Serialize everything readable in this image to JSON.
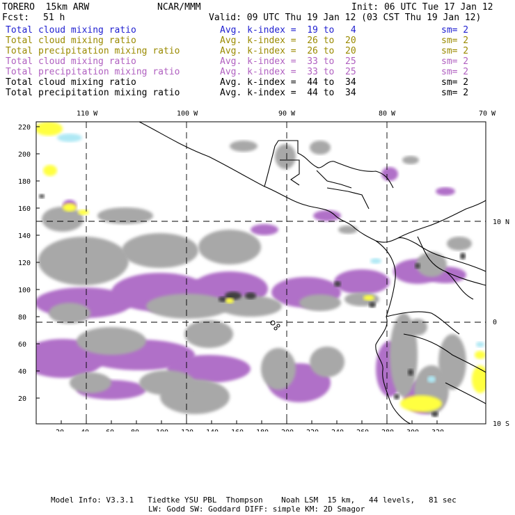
{
  "header": {
    "model": "TORERO  15km ARW",
    "org": "NCAR/MMM",
    "init": "Init: 06 UTC Tue 17 Jan 12",
    "fcst_label": "Fcst:",
    "fcst_value": "51 h",
    "valid": "Valid: 09 UTC Thu 19 Jan 12 (03 CST Thu 19 Jan 12)"
  },
  "legend_rows": [
    {
      "field": "Total cloud mixing ratio",
      "kindex": "Avg. k-index =  19 to   4",
      "sm": "sm= 2",
      "color": "#1f1fd0"
    },
    {
      "field": "Total cloud mixing ratio",
      "kindex": "Avg. k-index =  26 to  20",
      "sm": "sm= 2",
      "color": "#9a8a00"
    },
    {
      "field": "Total precipitation mixing ratio",
      "kindex": "Avg. k-index =  26 to  20",
      "sm": "sm= 2",
      "color": "#9a8a00"
    },
    {
      "field": "Total cloud mixing ratio",
      "kindex": "Avg. k-index =  33 to  25",
      "sm": "sm= 2",
      "color": "#b060c0"
    },
    {
      "field": "Total precipitation mixing ratio",
      "kindex": "Avg. k-index =  33 to  25",
      "sm": "sm= 2",
      "color": "#b060c0"
    },
    {
      "field": "Total cloud mixing ratio",
      "kindex": "Avg. k-index =  44 to  34",
      "sm": "sm= 2",
      "color": "#000000"
    },
    {
      "field": "Total precipitation mixing ratio",
      "kindex": "Avg. k-index =  44 to  34",
      "sm": "sm= 2",
      "color": "#000000"
    }
  ],
  "axes": {
    "top_lon": [
      "110 W",
      "100 W",
      "90 W",
      "80 W",
      "70 W"
    ],
    "right_lat": [
      "10 N",
      "0",
      "10 S"
    ],
    "y_ticks": [
      "220",
      "200",
      "180",
      "160",
      "140",
      "120",
      "100",
      "80",
      "60",
      "40",
      "20"
    ],
    "x_ticks": [
      "20",
      "40",
      "60",
      "80",
      "100",
      "120",
      "140",
      "160",
      "180",
      "200",
      "220",
      "240",
      "260",
      "280",
      "300",
      "320"
    ]
  },
  "colors": {
    "cloud_low": "#aee8f4",
    "yellow": "#ffff40",
    "purple": "#b070c8",
    "gray": "#a8a8a8",
    "dark": "#404040"
  },
  "footer": {
    "line1": "Model Info: V3.3.1   Tiedtke YSU PBL  Thompson    Noah LSM  15 km,   44 levels,   81 sec",
    "line2": "LW: Godd SW: Goddard DIFF: simple KM: 2D Smagor"
  }
}
